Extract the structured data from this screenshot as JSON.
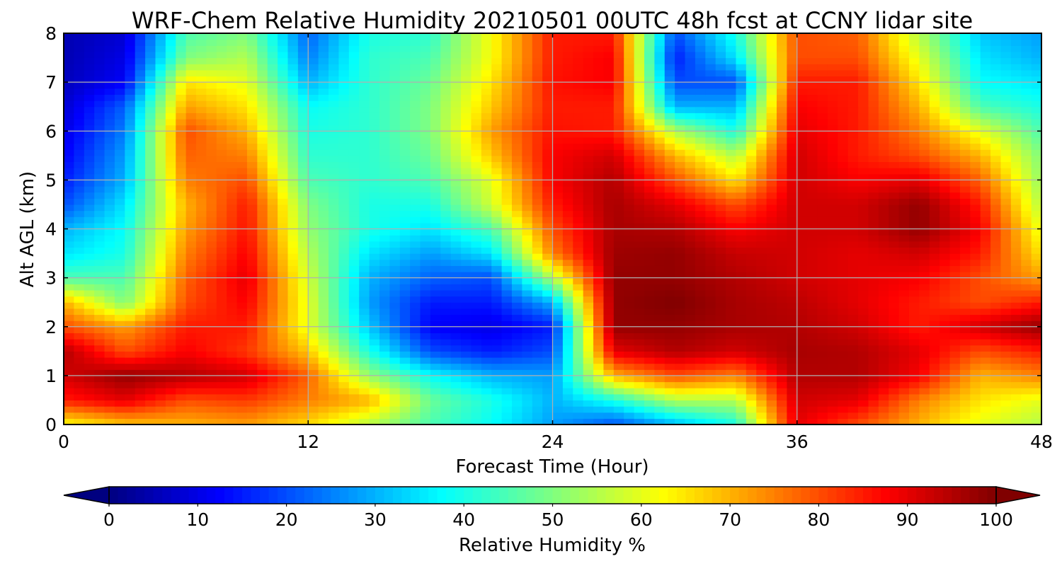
{
  "chart_data": {
    "type": "heatmap",
    "title": "WRF-Chem Relative Humidity 20210501 00UTC 48h fcst at CCNY lidar site",
    "xlabel": "Forecast Time (Hour)",
    "ylabel": "Alt AGL (km)",
    "xlim": [
      0,
      48
    ],
    "ylim": [
      0,
      8
    ],
    "x_ticks": [
      "0",
      "12",
      "24",
      "36",
      "48"
    ],
    "y_ticks": [
      "0",
      "1",
      "2",
      "3",
      "4",
      "5",
      "6",
      "7",
      "8"
    ],
    "grid": true,
    "colorbar": {
      "label": "Relative Humidity %",
      "range": [
        0,
        100
      ],
      "ticks": [
        "0",
        "10",
        "20",
        "30",
        "40",
        "50",
        "60",
        "70",
        "80",
        "90",
        "100"
      ],
      "colormap": "jet",
      "extend": "both"
    },
    "x": [
      0,
      3,
      6,
      9,
      12,
      15,
      18,
      21,
      24,
      27,
      30,
      33,
      36,
      39,
      42,
      45,
      48
    ],
    "y": [
      0,
      0.5,
      1,
      1.5,
      2,
      2.5,
      3,
      3.5,
      4,
      4.5,
      5,
      5.5,
      6,
      6.5,
      7,
      7.5,
      8
    ],
    "z": [
      [
        62,
        68,
        70,
        72,
        66,
        55,
        45,
        38,
        28,
        20,
        30,
        40,
        90,
        80,
        70,
        60,
        55
      ],
      [
        85,
        90,
        80,
        82,
        75,
        70,
        48,
        40,
        30,
        40,
        55,
        55,
        92,
        90,
        75,
        65,
        60
      ],
      [
        92,
        98,
        95,
        92,
        78,
        52,
        38,
        30,
        28,
        70,
        80,
        75,
        95,
        95,
        88,
        70,
        75
      ],
      [
        95,
        80,
        88,
        82,
        68,
        40,
        20,
        15,
        20,
        90,
        95,
        92,
        96,
        95,
        90,
        80,
        85
      ],
      [
        80,
        72,
        85,
        85,
        60,
        32,
        12,
        10,
        15,
        98,
        98,
        96,
        95,
        92,
        85,
        92,
        98
      ],
      [
        70,
        50,
        80,
        88,
        60,
        28,
        15,
        15,
        30,
        98,
        100,
        96,
        94,
        90,
        85,
        80,
        85
      ],
      [
        45,
        45,
        78,
        90,
        58,
        30,
        22,
        20,
        55,
        98,
        98,
        95,
        92,
        90,
        88,
        80,
        72
      ],
      [
        35,
        40,
        75,
        88,
        55,
        35,
        28,
        35,
        75,
        97,
        98,
        93,
        92,
        90,
        92,
        85,
        65
      ],
      [
        30,
        38,
        72,
        86,
        52,
        40,
        35,
        45,
        80,
        96,
        95,
        88,
        92,
        92,
        98,
        88,
        60
      ],
      [
        20,
        35,
        70,
        85,
        50,
        40,
        40,
        58,
        85,
        96,
        90,
        80,
        92,
        92,
        98,
        85,
        55
      ],
      [
        15,
        30,
        75,
        80,
        45,
        42,
        45,
        60,
        88,
        95,
        80,
        65,
        92,
        88,
        90,
        78,
        52
      ],
      [
        12,
        28,
        78,
        75,
        42,
        42,
        48,
        68,
        88,
        92,
        70,
        55,
        92,
        85,
        80,
        70,
        50
      ],
      [
        10,
        25,
        80,
        70,
        40,
        42,
        50,
        72,
        86,
        85,
        55,
        40,
        90,
        85,
        75,
        60,
        45
      ],
      [
        8,
        22,
        72,
        65,
        38,
        42,
        50,
        68,
        85,
        85,
        30,
        30,
        88,
        85,
        70,
        45,
        40
      ],
      [
        6,
        12,
        65,
        60,
        30,
        42,
        48,
        65,
        86,
        88,
        20,
        20,
        85,
        85,
        65,
        38,
        35
      ],
      [
        5,
        10,
        50,
        55,
        25,
        42,
        45,
        62,
        85,
        88,
        15,
        35,
        80,
        80,
        60,
        35,
        30
      ],
      [
        5,
        8,
        45,
        50,
        22,
        40,
        42,
        62,
        85,
        85,
        20,
        40,
        80,
        78,
        55,
        32,
        28
      ]
    ]
  }
}
